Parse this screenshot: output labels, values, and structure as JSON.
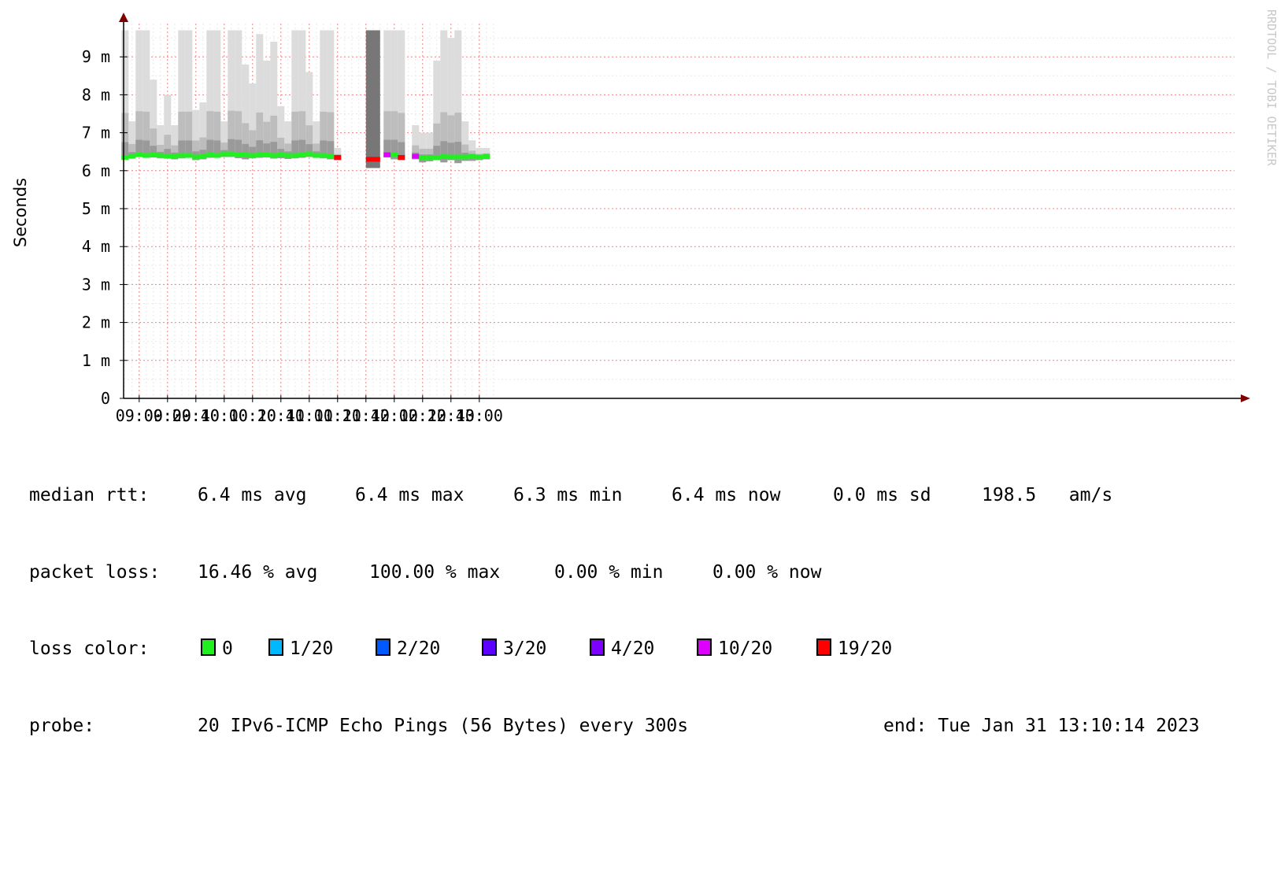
{
  "chart_data": {
    "type": "area",
    "ylabel": "Seconds",
    "y_unit": "m",
    "ylim": [
      0,
      9.7
    ],
    "y_ticks": [
      "0",
      "1 m",
      "2 m",
      "3 m",
      "4 m",
      "5 m",
      "6 m",
      "7 m",
      "8 m",
      "9 m"
    ],
    "x_ticks": [
      "09:00",
      "09:20",
      "09:40",
      "10:00",
      "10:20",
      "10:40",
      "11:00",
      "11:20",
      "11:40",
      "12:00",
      "12:20",
      "12:40",
      "13:00"
    ],
    "grid": true,
    "watermark": "RRDTOOL / TOBI OETIKER",
    "x_start": "08:49",
    "x_end": "13:13",
    "interval_minutes": 5,
    "series": [
      {
        "name": "median rtt",
        "time": [
          "08:50",
          "08:55",
          "09:00",
          "09:05",
          "09:10",
          "09:15",
          "09:20",
          "09:25",
          "09:30",
          "09:35",
          "09:40",
          "09:45",
          "09:50",
          "09:55",
          "10:00",
          "10:05",
          "10:10",
          "10:15",
          "10:20",
          "10:25",
          "10:30",
          "10:35",
          "10:40",
          "10:45",
          "10:50",
          "10:55",
          "11:00",
          "11:05",
          "11:10",
          "11:15",
          "11:20",
          "11:45",
          "11:55",
          "12:00",
          "12:05",
          "12:15",
          "12:20",
          "12:25",
          "12:30",
          "12:35",
          "12:40",
          "12:45",
          "12:50",
          "12:55",
          "13:00",
          "13:05"
        ],
        "median": [
          6.35,
          6.38,
          6.42,
          6.4,
          6.42,
          6.4,
          6.38,
          6.38,
          6.4,
          6.4,
          6.36,
          6.38,
          6.42,
          6.4,
          6.44,
          6.44,
          6.42,
          6.42,
          6.4,
          6.42,
          6.42,
          6.4,
          6.42,
          6.4,
          6.4,
          6.42,
          6.44,
          6.4,
          6.4,
          6.38,
          6.35,
          6.3,
          6.42,
          6.42,
          6.35,
          6.38,
          6.35,
          6.35,
          6.35,
          6.38,
          6.36,
          6.36,
          6.36,
          6.38,
          6.36,
          6.38
        ],
        "min": [
          6.3,
          6.32,
          6.36,
          6.34,
          6.35,
          6.33,
          6.32,
          6.3,
          6.33,
          6.34,
          6.28,
          6.3,
          6.34,
          6.34,
          6.36,
          6.36,
          6.33,
          6.3,
          6.33,
          6.34,
          6.35,
          6.32,
          6.33,
          6.31,
          6.33,
          6.34,
          6.36,
          6.34,
          6.33,
          6.3,
          6.28,
          6.07,
          6.35,
          6.3,
          6.28,
          6.3,
          6.22,
          6.25,
          6.28,
          6.22,
          6.28,
          6.2,
          6.26,
          6.26,
          6.28,
          6.3
        ],
        "max": [
          9.7,
          7.3,
          9.7,
          9.7,
          8.4,
          7.2,
          8.0,
          7.2,
          9.7,
          9.7,
          7.6,
          7.8,
          9.7,
          9.7,
          7.3,
          9.7,
          9.7,
          8.8,
          8.3,
          9.6,
          8.9,
          9.4,
          7.7,
          7.3,
          9.7,
          9.7,
          8.6,
          7.3,
          9.7,
          9.7,
          6.6,
          9.7,
          9.7,
          9.7,
          9.7,
          7.2,
          7.0,
          7.0,
          8.9,
          9.7,
          9.5,
          9.7,
          7.3,
          6.8,
          6.6,
          6.6
        ],
        "loss": [
          0,
          0,
          0,
          0,
          0,
          0,
          0,
          0,
          0,
          0,
          0,
          0,
          0,
          0,
          0,
          0,
          0,
          0,
          0,
          0,
          0,
          0,
          0,
          0,
          0,
          0,
          0,
          0,
          0,
          0,
          19,
          19,
          10,
          0,
          19,
          10,
          0,
          0,
          0,
          0,
          0,
          0,
          0,
          0,
          0,
          0
        ]
      }
    ],
    "loss_colors": {
      "0": "#20f020",
      "1/20": "#00b8ff",
      "2/20": "#0059ff",
      "3/20": "#5e00ff",
      "4/20": "#7e00ff",
      "10/20": "#dd00ff",
      "19/20": "#ff0000"
    }
  },
  "legend": {
    "median_rtt": {
      "label": "median rtt:",
      "avg": "6.4 ms avg",
      "max": "6.4 ms max",
      "min": "6.3 ms min",
      "now": "6.4 ms now",
      "sd": "0.0 ms sd",
      "am": "198.5   am/s"
    },
    "packet_loss": {
      "label": "packet loss:",
      "avg": "16.46 % avg",
      "max": "100.00 % max",
      "min": "0.00 % min",
      "now": "0.00 % now"
    },
    "loss_color": {
      "label": "loss color:",
      "items": [
        {
          "label": "0",
          "color": "#20f020"
        },
        {
          "label": "1/20",
          "color": "#00b8ff"
        },
        {
          "label": "2/20",
          "color": "#0059ff"
        },
        {
          "label": "3/20",
          "color": "#5e00ff"
        },
        {
          "label": "4/20",
          "color": "#7e00ff"
        },
        {
          "label": "10/20",
          "color": "#dd00ff"
        },
        {
          "label": "19/20",
          "color": "#ff0000"
        }
      ]
    },
    "probe": {
      "label": "probe:",
      "text": "20 IPv6-ICMP Echo Pings (56 Bytes) every 300s",
      "end": "end: Tue Jan 31 13:10:14 2023"
    }
  }
}
